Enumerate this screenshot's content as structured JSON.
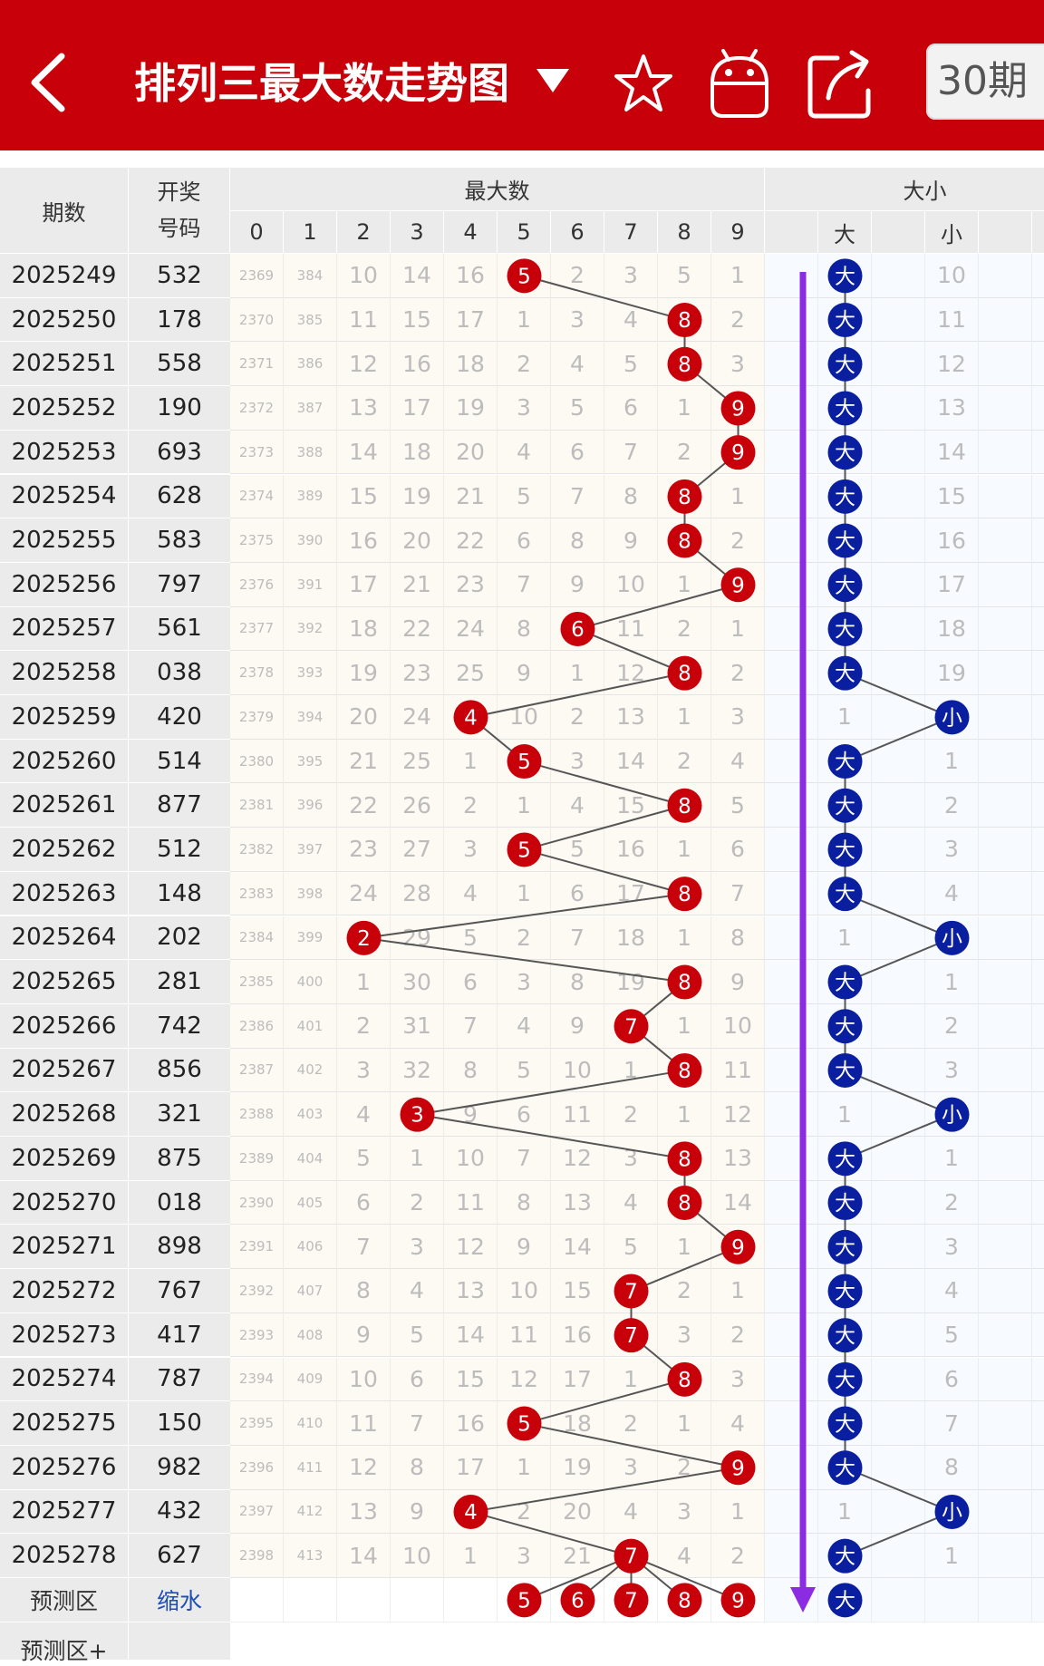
{
  "header": {
    "title": "排列三最大数走势图",
    "period_select": "30期",
    "icons": [
      "back-icon",
      "dropdown-arrow-icon",
      "star-icon",
      "robot-icon",
      "share-icon"
    ]
  },
  "table": {
    "col_issue": "期数",
    "col_code_line1": "开奖",
    "col_code_line2": "号码",
    "group_max": "最大数",
    "digits": [
      "0",
      "1",
      "2",
      "3",
      "4",
      "5",
      "6",
      "7",
      "8",
      "9"
    ],
    "group_size": "大小",
    "size_big": "大",
    "size_small": "小",
    "predict_label": "预测区",
    "predict_link": "缩水",
    "predict_plus_label": "预测区+",
    "predict_max": [
      "5",
      "6",
      "7",
      "8",
      "9"
    ],
    "predict_size": "大",
    "rows": [
      {
        "issue": "2025249",
        "code": "532",
        "miss": [
          "2369",
          "384",
          "10",
          "14",
          "16",
          "5",
          "2",
          "3",
          "5",
          "1"
        ],
        "size": [
          "大",
          "",
          "10"
        ]
      },
      {
        "issue": "2025250",
        "code": "178",
        "miss": [
          "2370",
          "385",
          "11",
          "15",
          "17",
          "1",
          "3",
          "4",
          "8",
          "2"
        ],
        "size": [
          "大",
          "",
          "11"
        ]
      },
      {
        "issue": "2025251",
        "code": "558",
        "miss": [
          "2371",
          "386",
          "12",
          "16",
          "18",
          "2",
          "4",
          "5",
          "8",
          "3"
        ],
        "size": [
          "大",
          "",
          "12"
        ]
      },
      {
        "issue": "2025252",
        "code": "190",
        "miss": [
          "2372",
          "387",
          "13",
          "17",
          "19",
          "3",
          "5",
          "6",
          "1",
          "9"
        ],
        "size": [
          "大",
          "",
          "13"
        ]
      },
      {
        "issue": "2025253",
        "code": "693",
        "miss": [
          "2373",
          "388",
          "14",
          "18",
          "20",
          "4",
          "6",
          "7",
          "2",
          "9"
        ],
        "size": [
          "大",
          "",
          "14"
        ]
      },
      {
        "issue": "2025254",
        "code": "628",
        "miss": [
          "2374",
          "389",
          "15",
          "19",
          "21",
          "5",
          "7",
          "8",
          "8",
          "1"
        ],
        "size": [
          "大",
          "",
          "15"
        ]
      },
      {
        "issue": "2025255",
        "code": "583",
        "miss": [
          "2375",
          "390",
          "16",
          "20",
          "22",
          "6",
          "8",
          "9",
          "8",
          "2"
        ],
        "size": [
          "大",
          "",
          "16"
        ]
      },
      {
        "issue": "2025256",
        "code": "797",
        "miss": [
          "2376",
          "391",
          "17",
          "21",
          "23",
          "7",
          "9",
          "10",
          "1",
          "9"
        ],
        "size": [
          "大",
          "",
          "17"
        ]
      },
      {
        "issue": "2025257",
        "code": "561",
        "miss": [
          "2377",
          "392",
          "18",
          "22",
          "24",
          "8",
          "6",
          "11",
          "2",
          "1"
        ],
        "size": [
          "大",
          "",
          "18"
        ]
      },
      {
        "issue": "2025258",
        "code": "038",
        "miss": [
          "2378",
          "393",
          "19",
          "23",
          "25",
          "9",
          "1",
          "12",
          "8",
          "2"
        ],
        "size": [
          "大",
          "",
          "19"
        ]
      },
      {
        "issue": "2025259",
        "code": "420",
        "miss": [
          "2379",
          "394",
          "20",
          "24",
          "4",
          "10",
          "2",
          "13",
          "1",
          "3"
        ],
        "size": [
          "1",
          "",
          "小"
        ]
      },
      {
        "issue": "2025260",
        "code": "514",
        "miss": [
          "2380",
          "395",
          "21",
          "25",
          "1",
          "5",
          "3",
          "14",
          "2",
          "4"
        ],
        "size": [
          "大",
          "",
          "1"
        ]
      },
      {
        "issue": "2025261",
        "code": "877",
        "miss": [
          "2381",
          "396",
          "22",
          "26",
          "2",
          "1",
          "4",
          "15",
          "8",
          "5"
        ],
        "size": [
          "大",
          "",
          "2"
        ]
      },
      {
        "issue": "2025262",
        "code": "512",
        "miss": [
          "2382",
          "397",
          "23",
          "27",
          "3",
          "5",
          "5",
          "16",
          "1",
          "6"
        ],
        "size": [
          "大",
          "",
          "3"
        ]
      },
      {
        "issue": "2025263",
        "code": "148",
        "miss": [
          "2383",
          "398",
          "24",
          "28",
          "4",
          "1",
          "6",
          "17",
          "8",
          "7"
        ],
        "size": [
          "大",
          "",
          "4"
        ]
      },
      {
        "issue": "2025264",
        "code": "202",
        "miss": [
          "2384",
          "399",
          "2",
          "29",
          "5",
          "2",
          "7",
          "18",
          "1",
          "8"
        ],
        "size": [
          "1",
          "",
          "小"
        ]
      },
      {
        "issue": "2025265",
        "code": "281",
        "miss": [
          "2385",
          "400",
          "1",
          "30",
          "6",
          "3",
          "8",
          "19",
          "8",
          "9"
        ],
        "size": [
          "大",
          "",
          "1"
        ]
      },
      {
        "issue": "2025266",
        "code": "742",
        "miss": [
          "2386",
          "401",
          "2",
          "31",
          "7",
          "4",
          "9",
          "7",
          "1",
          "10"
        ],
        "size": [
          "大",
          "",
          "2"
        ]
      },
      {
        "issue": "2025267",
        "code": "856",
        "miss": [
          "2387",
          "402",
          "3",
          "32",
          "8",
          "5",
          "10",
          "1",
          "8",
          "11"
        ],
        "size": [
          "大",
          "",
          "3"
        ]
      },
      {
        "issue": "2025268",
        "code": "321",
        "miss": [
          "2388",
          "403",
          "4",
          "3",
          "9",
          "6",
          "11",
          "2",
          "1",
          "12"
        ],
        "size": [
          "1",
          "",
          "小"
        ]
      },
      {
        "issue": "2025269",
        "code": "875",
        "miss": [
          "2389",
          "404",
          "5",
          "1",
          "10",
          "7",
          "12",
          "3",
          "8",
          "13"
        ],
        "size": [
          "大",
          "",
          "1"
        ]
      },
      {
        "issue": "2025270",
        "code": "018",
        "miss": [
          "2390",
          "405",
          "6",
          "2",
          "11",
          "8",
          "13",
          "4",
          "8",
          "14"
        ],
        "size": [
          "大",
          "",
          "2"
        ]
      },
      {
        "issue": "2025271",
        "code": "898",
        "miss": [
          "2391",
          "406",
          "7",
          "3",
          "12",
          "9",
          "14",
          "5",
          "1",
          "9"
        ],
        "size": [
          "大",
          "",
          "3"
        ]
      },
      {
        "issue": "2025272",
        "code": "767",
        "miss": [
          "2392",
          "407",
          "8",
          "4",
          "13",
          "10",
          "15",
          "7",
          "2",
          "1"
        ],
        "size": [
          "大",
          "",
          "4"
        ]
      },
      {
        "issue": "2025273",
        "code": "417",
        "miss": [
          "2393",
          "408",
          "9",
          "5",
          "14",
          "11",
          "16",
          "7",
          "3",
          "2"
        ],
        "size": [
          "大",
          "",
          "5"
        ]
      },
      {
        "issue": "2025274",
        "code": "787",
        "miss": [
          "2394",
          "409",
          "10",
          "6",
          "15",
          "12",
          "17",
          "1",
          "8",
          "3"
        ],
        "size": [
          "大",
          "",
          "6"
        ]
      },
      {
        "issue": "2025275",
        "code": "150",
        "miss": [
          "2395",
          "410",
          "11",
          "7",
          "16",
          "5",
          "18",
          "2",
          "1",
          "4"
        ],
        "size": [
          "大",
          "",
          "7"
        ]
      },
      {
        "issue": "2025276",
        "code": "982",
        "miss": [
          "2396",
          "411",
          "12",
          "8",
          "17",
          "1",
          "19",
          "3",
          "2",
          "9"
        ],
        "size": [
          "大",
          "",
          "8"
        ]
      },
      {
        "issue": "2025277",
        "code": "432",
        "miss": [
          "2397",
          "412",
          "13",
          "9",
          "4",
          "2",
          "20",
          "4",
          "3",
          "1"
        ],
        "size": [
          "1",
          "",
          "小"
        ]
      },
      {
        "issue": "2025278",
        "code": "627",
        "miss": [
          "2398",
          "413",
          "14",
          "10",
          "1",
          "3",
          "21",
          "7",
          "4",
          "2"
        ],
        "size": [
          "大",
          "",
          "1"
        ]
      }
    ]
  },
  "colors": {
    "header_bg": "#c8000a",
    "ball_red": "#c8000a",
    "ball_blue": "#0a1fa0",
    "trend_arrow": "#8b2be2",
    "grid_header": "#ebebeb",
    "cell_bg": "#fdfaf3",
    "size_bg": "#f7faff"
  }
}
